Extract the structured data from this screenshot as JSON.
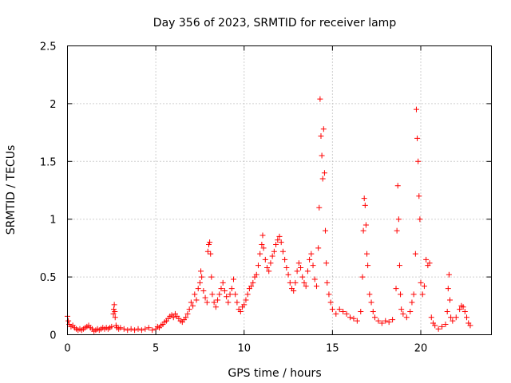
{
  "chart_data": {
    "type": "scatter",
    "title": "Day 356 of 2023, SRMTID for receiver lamp",
    "xlabel": "GPS time / hours",
    "ylabel": "SRMTID / TECUs",
    "xlim": [
      0,
      24
    ],
    "ylim": [
      0,
      2.5
    ],
    "xticks": [
      0,
      5,
      10,
      15,
      20
    ],
    "xtick_labels": [
      "0",
      "5",
      "10",
      "15",
      "20"
    ],
    "yticks": [
      0,
      0.5,
      1,
      1.5,
      2,
      2.5
    ],
    "ytick_labels": [
      "0",
      "0.5",
      "1",
      "1.5",
      "2",
      "2.5"
    ],
    "grid": true,
    "marker": "+",
    "marker_color": "#ff0000",
    "series": [
      {
        "name": "SRMTID",
        "points": [
          [
            0.0,
            0.16
          ],
          [
            0.05,
            0.12
          ],
          [
            0.1,
            0.09
          ],
          [
            0.2,
            0.07
          ],
          [
            0.3,
            0.08
          ],
          [
            0.4,
            0.06
          ],
          [
            0.5,
            0.05
          ],
          [
            0.6,
            0.04
          ],
          [
            0.7,
            0.05
          ],
          [
            0.8,
            0.04
          ],
          [
            0.9,
            0.05
          ],
          [
            1.0,
            0.06
          ],
          [
            1.1,
            0.07
          ],
          [
            1.2,
            0.08
          ],
          [
            1.3,
            0.06
          ],
          [
            1.4,
            0.05
          ],
          [
            1.5,
            0.03
          ],
          [
            1.6,
            0.04
          ],
          [
            1.7,
            0.05
          ],
          [
            1.8,
            0.04
          ],
          [
            1.9,
            0.05
          ],
          [
            2.0,
            0.06
          ],
          [
            2.1,
            0.05
          ],
          [
            2.2,
            0.06
          ],
          [
            2.3,
            0.05
          ],
          [
            2.4,
            0.06
          ],
          [
            2.5,
            0.07
          ],
          [
            2.6,
            0.18
          ],
          [
            2.62,
            0.22
          ],
          [
            2.65,
            0.26
          ],
          [
            2.68,
            0.2
          ],
          [
            2.7,
            0.15
          ],
          [
            2.75,
            0.08
          ],
          [
            2.8,
            0.06
          ],
          [
            2.9,
            0.05
          ],
          [
            3.0,
            0.06
          ],
          [
            3.2,
            0.05
          ],
          [
            3.4,
            0.04
          ],
          [
            3.6,
            0.05
          ],
          [
            3.8,
            0.04
          ],
          [
            4.0,
            0.05
          ],
          [
            4.2,
            0.04
          ],
          [
            4.4,
            0.05
          ],
          [
            4.6,
            0.06
          ],
          [
            4.8,
            0.04
          ],
          [
            5.0,
            0.05
          ],
          [
            5.1,
            0.07
          ],
          [
            5.2,
            0.06
          ],
          [
            5.3,
            0.08
          ],
          [
            5.4,
            0.09
          ],
          [
            5.5,
            0.11
          ],
          [
            5.6,
            0.12
          ],
          [
            5.7,
            0.14
          ],
          [
            5.8,
            0.16
          ],
          [
            5.9,
            0.17
          ],
          [
            6.0,
            0.15
          ],
          [
            6.1,
            0.18
          ],
          [
            6.2,
            0.16
          ],
          [
            6.3,
            0.14
          ],
          [
            6.4,
            0.12
          ],
          [
            6.5,
            0.11
          ],
          [
            6.6,
            0.13
          ],
          [
            6.7,
            0.15
          ],
          [
            6.8,
            0.18
          ],
          [
            6.9,
            0.22
          ],
          [
            7.0,
            0.28
          ],
          [
            7.1,
            0.25
          ],
          [
            7.2,
            0.35
          ],
          [
            7.3,
            0.3
          ],
          [
            7.4,
            0.4
          ],
          [
            7.5,
            0.45
          ],
          [
            7.55,
            0.55
          ],
          [
            7.6,
            0.5
          ],
          [
            7.7,
            0.38
          ],
          [
            7.8,
            0.32
          ],
          [
            7.9,
            0.28
          ],
          [
            7.95,
            0.72
          ],
          [
            8.0,
            0.78
          ],
          [
            8.05,
            0.8
          ],
          [
            8.1,
            0.7
          ],
          [
            8.15,
            0.5
          ],
          [
            8.2,
            0.35
          ],
          [
            8.3,
            0.28
          ],
          [
            8.4,
            0.24
          ],
          [
            8.5,
            0.3
          ],
          [
            8.6,
            0.35
          ],
          [
            8.7,
            0.4
          ],
          [
            8.8,
            0.45
          ],
          [
            8.9,
            0.38
          ],
          [
            9.0,
            0.33
          ],
          [
            9.1,
            0.28
          ],
          [
            9.2,
            0.35
          ],
          [
            9.3,
            0.4
          ],
          [
            9.4,
            0.48
          ],
          [
            9.5,
            0.35
          ],
          [
            9.6,
            0.28
          ],
          [
            9.7,
            0.22
          ],
          [
            9.8,
            0.2
          ],
          [
            9.9,
            0.24
          ],
          [
            10.0,
            0.26
          ],
          [
            10.1,
            0.3
          ],
          [
            10.2,
            0.35
          ],
          [
            10.3,
            0.4
          ],
          [
            10.4,
            0.42
          ],
          [
            10.5,
            0.45
          ],
          [
            10.6,
            0.5
          ],
          [
            10.7,
            0.52
          ],
          [
            10.8,
            0.6
          ],
          [
            10.9,
            0.7
          ],
          [
            11.0,
            0.78
          ],
          [
            11.05,
            0.86
          ],
          [
            11.1,
            0.75
          ],
          [
            11.2,
            0.65
          ],
          [
            11.3,
            0.58
          ],
          [
            11.4,
            0.55
          ],
          [
            11.5,
            0.62
          ],
          [
            11.6,
            0.68
          ],
          [
            11.7,
            0.72
          ],
          [
            11.8,
            0.78
          ],
          [
            11.9,
            0.82
          ],
          [
            12.0,
            0.85
          ],
          [
            12.1,
            0.8
          ],
          [
            12.2,
            0.72
          ],
          [
            12.3,
            0.65
          ],
          [
            12.4,
            0.58
          ],
          [
            12.5,
            0.52
          ],
          [
            12.6,
            0.45
          ],
          [
            12.7,
            0.4
          ],
          [
            12.8,
            0.38
          ],
          [
            12.9,
            0.45
          ],
          [
            13.0,
            0.55
          ],
          [
            13.1,
            0.62
          ],
          [
            13.2,
            0.58
          ],
          [
            13.3,
            0.5
          ],
          [
            13.4,
            0.45
          ],
          [
            13.5,
            0.42
          ],
          [
            13.6,
            0.55
          ],
          [
            13.7,
            0.65
          ],
          [
            13.8,
            0.7
          ],
          [
            13.9,
            0.6
          ],
          [
            14.0,
            0.48
          ],
          [
            14.1,
            0.42
          ],
          [
            14.2,
            0.75
          ],
          [
            14.25,
            1.1
          ],
          [
            14.3,
            2.04
          ],
          [
            14.35,
            1.72
          ],
          [
            14.4,
            1.55
          ],
          [
            14.45,
            1.35
          ],
          [
            14.5,
            1.78
          ],
          [
            14.55,
            1.4
          ],
          [
            14.6,
            0.9
          ],
          [
            14.65,
            0.62
          ],
          [
            14.7,
            0.45
          ],
          [
            14.8,
            0.35
          ],
          [
            14.9,
            0.28
          ],
          [
            15.0,
            0.22
          ],
          [
            15.2,
            0.18
          ],
          [
            15.4,
            0.22
          ],
          [
            15.6,
            0.2
          ],
          [
            15.8,
            0.18
          ],
          [
            16.0,
            0.15
          ],
          [
            16.2,
            0.14
          ],
          [
            16.4,
            0.12
          ],
          [
            16.6,
            0.2
          ],
          [
            16.7,
            0.5
          ],
          [
            16.75,
            0.9
          ],
          [
            16.8,
            1.18
          ],
          [
            16.85,
            1.12
          ],
          [
            16.9,
            0.95
          ],
          [
            16.95,
            0.7
          ],
          [
            17.0,
            0.6
          ],
          [
            17.1,
            0.35
          ],
          [
            17.2,
            0.28
          ],
          [
            17.3,
            0.2
          ],
          [
            17.4,
            0.15
          ],
          [
            17.6,
            0.12
          ],
          [
            17.8,
            0.1
          ],
          [
            18.0,
            0.12
          ],
          [
            18.2,
            0.11
          ],
          [
            18.4,
            0.13
          ],
          [
            18.6,
            0.4
          ],
          [
            18.65,
            0.9
          ],
          [
            18.7,
            1.29
          ],
          [
            18.75,
            1.0
          ],
          [
            18.8,
            0.6
          ],
          [
            18.85,
            0.35
          ],
          [
            18.9,
            0.22
          ],
          [
            19.0,
            0.18
          ],
          [
            19.2,
            0.15
          ],
          [
            19.4,
            0.2
          ],
          [
            19.5,
            0.28
          ],
          [
            19.6,
            0.35
          ],
          [
            19.7,
            0.7
          ],
          [
            19.75,
            1.95
          ],
          [
            19.8,
            1.7
          ],
          [
            19.85,
            1.5
          ],
          [
            19.9,
            1.2
          ],
          [
            19.95,
            1.0
          ],
          [
            20.0,
            0.45
          ],
          [
            20.1,
            0.35
          ],
          [
            20.2,
            0.42
          ],
          [
            20.3,
            0.65
          ],
          [
            20.4,
            0.6
          ],
          [
            20.5,
            0.62
          ],
          [
            20.6,
            0.15
          ],
          [
            20.7,
            0.1
          ],
          [
            20.8,
            0.08
          ],
          [
            21.0,
            0.05
          ],
          [
            21.2,
            0.07
          ],
          [
            21.4,
            0.09
          ],
          [
            21.5,
            0.2
          ],
          [
            21.55,
            0.4
          ],
          [
            21.6,
            0.52
          ],
          [
            21.65,
            0.3
          ],
          [
            21.7,
            0.15
          ],
          [
            21.8,
            0.12
          ],
          [
            22.0,
            0.15
          ],
          [
            22.2,
            0.22
          ],
          [
            22.3,
            0.25
          ],
          [
            22.4,
            0.24
          ],
          [
            22.5,
            0.2
          ],
          [
            22.6,
            0.15
          ],
          [
            22.7,
            0.1
          ],
          [
            22.8,
            0.08
          ]
        ]
      }
    ]
  }
}
